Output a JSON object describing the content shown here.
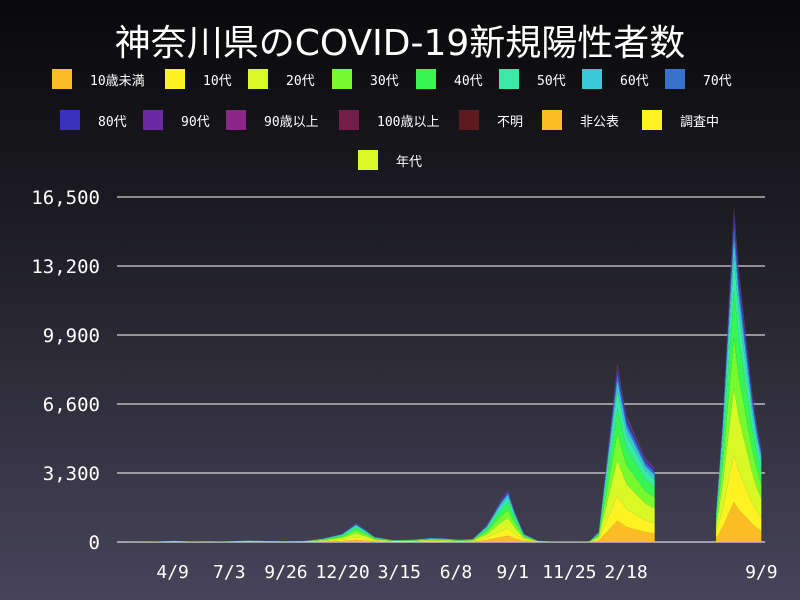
{
  "chart_data": {
    "type": "bar",
    "stacked": true,
    "title": "神奈川県のCOVID-19新規陽性者数",
    "xlabel": "",
    "ylabel": "",
    "ylim": [
      0,
      16500
    ],
    "yticks": [
      "0",
      "3,300",
      "6,600",
      "9,900",
      "13,200",
      "16,500"
    ],
    "ytick_values": [
      0,
      3300,
      6600,
      9900,
      13200,
      16500
    ],
    "xticks": [
      "4/9",
      "7/3",
      "9/26",
      "12/20",
      "3/15",
      "6/8",
      "9/1",
      "11/25",
      "2/18",
      "9/9"
    ],
    "xtick_dates": [
      "2020-04-09",
      "2020-07-03",
      "2020-09-26",
      "2020-12-20",
      "2021-03-15",
      "2021-06-08",
      "2021-09-01",
      "2021-11-25",
      "2022-02-18",
      "2022-09-09"
    ],
    "grid": true,
    "legend_placement": "top",
    "legend": [
      {
        "name": "10歳未満",
        "color": "#fbbd23"
      },
      {
        "name": "10代",
        "color": "#fdf323"
      },
      {
        "name": "20代",
        "color": "#d9f927"
      },
      {
        "name": "30代",
        "color": "#77f92f"
      },
      {
        "name": "40代",
        "color": "#37f552"
      },
      {
        "name": "50代",
        "color": "#38eaa5"
      },
      {
        "name": "60代",
        "color": "#38c8d8"
      },
      {
        "name": "70代",
        "color": "#3972cd"
      },
      {
        "name": "80代",
        "color": "#3a31bf"
      },
      {
        "name": "90代",
        "color": "#6a2aa6"
      },
      {
        "name": "90歳以上",
        "color": "#8c2689"
      },
      {
        "name": "100歳以上",
        "color": "#741d49"
      },
      {
        "name": "不明",
        "color": "#5d1b1f"
      },
      {
        "name": "非公表",
        "color": "#fbbd23"
      },
      {
        "name": "調査中",
        "color": "#fdf323"
      },
      {
        "name": "年代",
        "color": "#d9f927"
      }
    ],
    "approx_age_share": [
      0.12,
      0.14,
      0.2,
      0.15,
      0.14,
      0.1,
      0.06,
      0.04,
      0.03,
      0.01,
      0.005,
      0.001,
      0.001,
      0.001,
      0.001,
      0.001
    ],
    "dates": [
      "2020-01-18",
      "2020-02-15",
      "2020-03-14",
      "2020-04-11",
      "2020-05-09",
      "2020-06-06",
      "2020-07-04",
      "2020-08-01",
      "2020-08-29",
      "2020-09-26",
      "2020-10-24",
      "2020-11-21",
      "2020-12-19",
      "2021-01-09",
      "2021-01-23",
      "2021-02-06",
      "2021-03-06",
      "2021-04-03",
      "2021-05-01",
      "2021-05-22",
      "2021-06-12",
      "2021-07-03",
      "2021-07-24",
      "2021-08-14",
      "2021-08-25",
      "2021-09-04",
      "2021-09-18",
      "2021-10-09",
      "2021-11-06",
      "2021-12-04",
      "2021-12-25",
      "2022-01-08",
      "2022-01-22",
      "2022-02-05",
      "2022-02-19",
      "2022-03-05",
      "2022-03-19",
      "2022-04-02",
      "2022-07-03",
      "2022-07-13",
      "2022-07-23",
      "2022-07-30",
      "2022-08-06",
      "2022-08-13",
      "2022-08-20",
      "2022-08-27",
      "2022-09-03",
      "2022-09-09"
    ],
    "values": [
      0,
      5,
      20,
      60,
      20,
      5,
      40,
      80,
      50,
      40,
      50,
      180,
      400,
      900,
      600,
      250,
      100,
      120,
      200,
      180,
      120,
      150,
      800,
      2000,
      2500,
      1500,
      400,
      60,
      10,
      10,
      30,
      500,
      4500,
      8500,
      6000,
      5000,
      4000,
      3500,
      1500,
      6000,
      12000,
      16000,
      13000,
      11000,
      9000,
      7000,
      5500,
      4500
    ]
  }
}
